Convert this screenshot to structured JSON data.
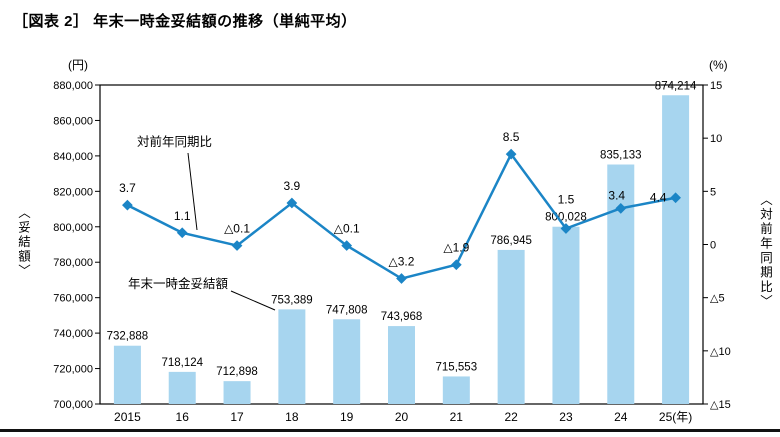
{
  "title": "［図表 2］ 年末一時金妥結額の推移（単純平均）",
  "chart_data": {
    "type": "bar+line",
    "categories": [
      "2015",
      "16",
      "17",
      "18",
      "19",
      "20",
      "21",
      "22",
      "23",
      "24",
      "25(年)"
    ],
    "series": [
      {
        "name": "年末一時金妥結額",
        "type": "bar",
        "axis": "left",
        "unit": "円",
        "color": "#a7d5ef",
        "values": [
          732888,
          718124,
          712898,
          753389,
          747808,
          743968,
          715553,
          786945,
          800028,
          835133,
          874214
        ],
        "labels": [
          "732,888",
          "718,124",
          "712,898",
          "753,389",
          "747,808",
          "743,968",
          "715,553",
          "786,945",
          "800,028",
          "835,133",
          "874,214"
        ]
      },
      {
        "name": "対前年同期比",
        "type": "line",
        "axis": "right",
        "unit": "%",
        "color": "#1b85c6",
        "values": [
          3.7,
          1.1,
          -0.1,
          3.9,
          -0.1,
          -3.2,
          -1.9,
          8.5,
          1.5,
          3.4,
          4.4
        ],
        "labels": [
          "3.7",
          "1.1",
          "△0.1",
          "3.9",
          "△0.1",
          "△3.2",
          "△1.9",
          "8.5",
          "1.5",
          "3.4",
          "4.4"
        ]
      }
    ],
    "left_axis": {
      "title": "〈妥結額〉",
      "unit": "(円)",
      "min": 700000,
      "max": 880000,
      "step": 20000,
      "ticks": [
        "880,000",
        "860,000",
        "840,000",
        "820,000",
        "800,000",
        "780,000",
        "760,000",
        "740,000",
        "720,000",
        "700,000"
      ]
    },
    "right_axis": {
      "title": "〈対前年同期比〉",
      "unit": "(%)",
      "min": -15,
      "max": 15,
      "step": 5,
      "ticks": [
        "15",
        "10",
        "5",
        "0",
        "△5",
        "△10",
        "△15"
      ]
    },
    "annotations": [
      {
        "text": "対前年同期比",
        "target": "line"
      },
      {
        "text": "年末一時金妥結額",
        "target": "bar"
      }
    ],
    "grid": false,
    "legend_position": "none"
  }
}
